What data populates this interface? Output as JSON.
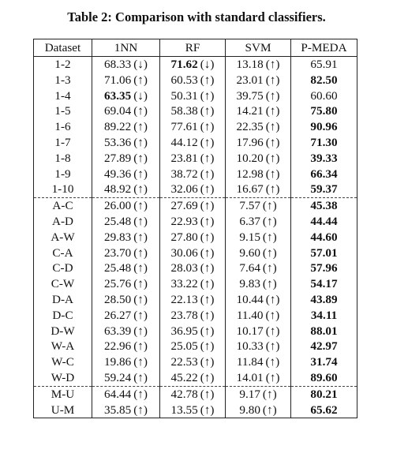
{
  "caption": "Table 2: Comparison with standard classifiers.",
  "columns": [
    "Dataset",
    "1NN",
    "RF",
    "SVM",
    "P-MEDA"
  ],
  "groups": [
    [
      {
        "dataset": "1-2",
        "v": [
          [
            "68.33",
            "↓",
            false
          ],
          [
            "71.62",
            "↓",
            true
          ],
          [
            "13.18",
            "↑",
            false
          ]
        ],
        "pmeda": [
          "65.91",
          false
        ]
      },
      {
        "dataset": "1-3",
        "v": [
          [
            "71.06",
            "↑",
            false
          ],
          [
            "60.53",
            "↑",
            false
          ],
          [
            "23.01",
            "↑",
            false
          ]
        ],
        "pmeda": [
          "82.50",
          true
        ]
      },
      {
        "dataset": "1-4",
        "v": [
          [
            "63.35",
            "↓",
            true
          ],
          [
            "50.31",
            "↑",
            false
          ],
          [
            "39.75",
            "↑",
            false
          ]
        ],
        "pmeda": [
          "60.60",
          false
        ]
      },
      {
        "dataset": "1-5",
        "v": [
          [
            "69.04",
            "↑",
            false
          ],
          [
            "58.38",
            "↑",
            false
          ],
          [
            "14.21",
            "↑",
            false
          ]
        ],
        "pmeda": [
          "75.80",
          true
        ]
      },
      {
        "dataset": "1-6",
        "v": [
          [
            "89.22",
            "↑",
            false
          ],
          [
            "77.61",
            "↑",
            false
          ],
          [
            "22.35",
            "↑",
            false
          ]
        ],
        "pmeda": [
          "90.96",
          true
        ]
      },
      {
        "dataset": "1-7",
        "v": [
          [
            "53.36",
            "↑",
            false
          ],
          [
            "44.12",
            "↑",
            false
          ],
          [
            "17.96",
            "↑",
            false
          ]
        ],
        "pmeda": [
          "71.30",
          true
        ]
      },
      {
        "dataset": "1-8",
        "v": [
          [
            "27.89",
            "↑",
            false
          ],
          [
            "23.81",
            "↑",
            false
          ],
          [
            "10.20",
            "↑",
            false
          ]
        ],
        "pmeda": [
          "39.33",
          true
        ]
      },
      {
        "dataset": "1-9",
        "v": [
          [
            "49.36",
            "↑",
            false
          ],
          [
            "38.72",
            "↑",
            false
          ],
          [
            "12.98",
            "↑",
            false
          ]
        ],
        "pmeda": [
          "66.34",
          true
        ]
      },
      {
        "dataset": "1-10",
        "v": [
          [
            "48.92",
            "↑",
            false
          ],
          [
            "32.06",
            "↑",
            false
          ],
          [
            "16.67",
            "↑",
            false
          ]
        ],
        "pmeda": [
          "59.37",
          true
        ]
      }
    ],
    [
      {
        "dataset": "A-C",
        "v": [
          [
            "26.00",
            "↑",
            false
          ],
          [
            "27.69",
            "↑",
            false
          ],
          [
            "7.57",
            "↑",
            false
          ]
        ],
        "pmeda": [
          "45.38",
          true
        ]
      },
      {
        "dataset": "A-D",
        "v": [
          [
            "25.48",
            "↑",
            false
          ],
          [
            "22.93",
            "↑",
            false
          ],
          [
            "6.37",
            "↑",
            false
          ]
        ],
        "pmeda": [
          "44.44",
          true
        ]
      },
      {
        "dataset": "A-W",
        "v": [
          [
            "29.83",
            "↑",
            false
          ],
          [
            "27.80",
            "↑",
            false
          ],
          [
            "9.15",
            "↑",
            false
          ]
        ],
        "pmeda": [
          "44.60",
          true
        ]
      },
      {
        "dataset": "C-A",
        "v": [
          [
            "23.70",
            "↑",
            false
          ],
          [
            "30.06",
            "↑",
            false
          ],
          [
            "9.60",
            "↑",
            false
          ]
        ],
        "pmeda": [
          "57.01",
          true
        ]
      },
      {
        "dataset": "C-D",
        "v": [
          [
            "25.48",
            "↑",
            false
          ],
          [
            "28.03",
            "↑",
            false
          ],
          [
            "7.64",
            "↑",
            false
          ]
        ],
        "pmeda": [
          "57.96",
          true
        ]
      },
      {
        "dataset": "C-W",
        "v": [
          [
            "25.76",
            "↑",
            false
          ],
          [
            "33.22",
            "↑",
            false
          ],
          [
            "9.83",
            "↑",
            false
          ]
        ],
        "pmeda": [
          "54.17",
          true
        ]
      },
      {
        "dataset": "D-A",
        "v": [
          [
            "28.50",
            "↑",
            false
          ],
          [
            "22.13",
            "↑",
            false
          ],
          [
            "10.44",
            "↑",
            false
          ]
        ],
        "pmeda": [
          "43.89",
          true
        ]
      },
      {
        "dataset": "D-C",
        "v": [
          [
            "26.27",
            "↑",
            false
          ],
          [
            "23.78",
            "↑",
            false
          ],
          [
            "11.40",
            "↑",
            false
          ]
        ],
        "pmeda": [
          "34.11",
          true
        ]
      },
      {
        "dataset": "D-W",
        "v": [
          [
            "63.39",
            "↑",
            false
          ],
          [
            "36.95",
            "↑",
            false
          ],
          [
            "10.17",
            "↑",
            false
          ]
        ],
        "pmeda": [
          "88.01",
          true
        ]
      },
      {
        "dataset": "W-A",
        "v": [
          [
            "22.96",
            "↑",
            false
          ],
          [
            "25.05",
            "↑",
            false
          ],
          [
            "10.33",
            "↑",
            false
          ]
        ],
        "pmeda": [
          "42.97",
          true
        ]
      },
      {
        "dataset": "W-C",
        "v": [
          [
            "19.86",
            "↑",
            false
          ],
          [
            "22.53",
            "↑",
            false
          ],
          [
            "11.84",
            "↑",
            false
          ]
        ],
        "pmeda": [
          "31.74",
          true
        ]
      },
      {
        "dataset": "W-D",
        "v": [
          [
            "59.24",
            "↑",
            false
          ],
          [
            "45.22",
            "↑",
            false
          ],
          [
            "14.01",
            "↑",
            false
          ]
        ],
        "pmeda": [
          "89.60",
          true
        ]
      }
    ],
    [
      {
        "dataset": "M-U",
        "v": [
          [
            "64.44",
            "↑",
            false
          ],
          [
            "42.78",
            "↑",
            false
          ],
          [
            "9.17",
            "↑",
            false
          ]
        ],
        "pmeda": [
          "80.21",
          true
        ]
      },
      {
        "dataset": "U-M",
        "v": [
          [
            "35.85",
            "↑",
            false
          ],
          [
            "13.55",
            "↑",
            false
          ],
          [
            "9.80",
            "↑",
            false
          ]
        ],
        "pmeda": [
          "65.62",
          true
        ]
      }
    ]
  ]
}
